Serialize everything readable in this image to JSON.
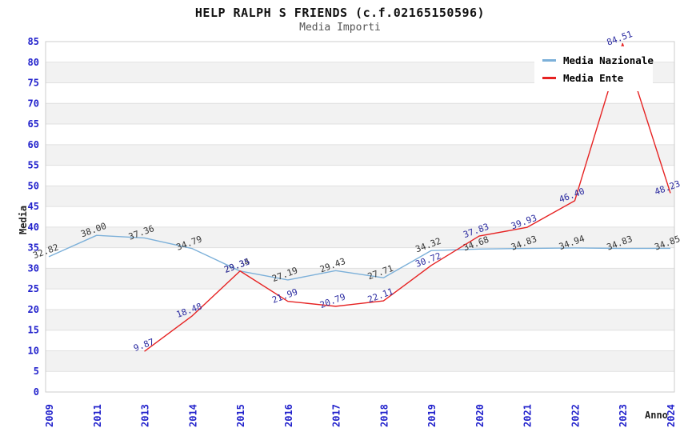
{
  "header": {
    "title": "HELP RALPH S FRIENDS (c.f.02165150596)",
    "subtitle": "Media Importi"
  },
  "chart_data": {
    "type": "line",
    "title": "HELP RALPH S FRIENDS (c.f.02165150596)",
    "subtitle": "Media Importi",
    "xlabel": "Anno",
    "ylabel": "Media",
    "categories": [
      "2009",
      "2011",
      "2013",
      "2014",
      "2015",
      "2016",
      "2017",
      "2018",
      "2019",
      "2020",
      "2021",
      "2022",
      "2023",
      "2024"
    ],
    "series": [
      {
        "name": "Media Nazionale",
        "color": "#7cb0d9",
        "label_color": "#333333",
        "values": [
          32.82,
          38.0,
          37.36,
          34.79,
          29.34,
          27.19,
          29.43,
          27.71,
          34.32,
          34.68,
          34.83,
          34.94,
          34.83,
          34.85
        ]
      },
      {
        "name": "Media Ente",
        "color": "#e62222",
        "label_color": "#2a2aa0",
        "values": [
          null,
          null,
          9.87,
          18.48,
          29.35,
          21.99,
          20.79,
          22.11,
          30.72,
          37.83,
          39.93,
          46.4,
          84.51,
          48.23
        ]
      }
    ],
    "ylim": [
      0,
      85
    ],
    "ytick_step": 5,
    "ytick_labels": [
      "0",
      "5",
      "10",
      "15",
      "20",
      "25",
      "30",
      "35",
      "40",
      "45",
      "50",
      "55",
      "60",
      "65",
      "70",
      "75",
      "80",
      "85"
    ],
    "grid": true,
    "legend_position": "top-right",
    "band_colors": [
      "#ffffff",
      "#f2f2f2"
    ],
    "grid_color": "#e0e0e0",
    "border_color": "#cccccc",
    "axis_tick_color": "#2222cc"
  }
}
